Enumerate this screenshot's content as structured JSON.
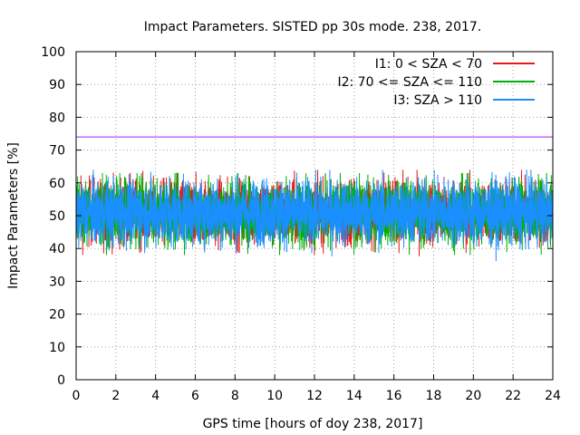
{
  "chart_data": {
    "type": "line",
    "title": "Impact Parameters. SISTED pp 30s mode. 238, 2017.",
    "xlabel": "GPS time [hours of doy 238, 2017]",
    "ylabel": "Impact Parameters [%]",
    "xlim": [
      0,
      24
    ],
    "ylim": [
      0,
      100
    ],
    "xticks": [
      0,
      2,
      4,
      6,
      8,
      10,
      12,
      14,
      16,
      18,
      20,
      22,
      24
    ],
    "yticks": [
      0,
      10,
      20,
      30,
      40,
      50,
      60,
      70,
      80,
      90,
      100
    ],
    "grid": true,
    "legend_position": "top-right",
    "threshold": {
      "value": 74,
      "color": "#a020f0"
    },
    "series": [
      {
        "name": "I1: 0 < SZA < 70",
        "color": "#e41a1c",
        "center": 51,
        "spread": 5,
        "min": 37,
        "max": 64
      },
      {
        "name": "I2: 70 <= SZA <= 110",
        "color": "#00b000",
        "center": 51,
        "spread": 5,
        "min": 38,
        "max": 63
      },
      {
        "name": "I3: SZA > 110",
        "color": "#1a8fff",
        "center": 51,
        "spread": 5,
        "min": 36,
        "max": 64
      }
    ]
  }
}
